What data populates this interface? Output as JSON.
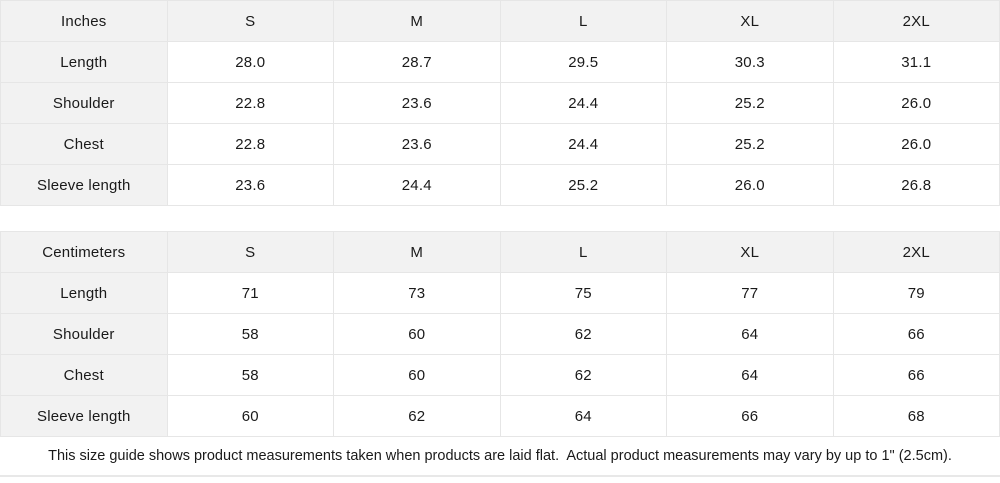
{
  "colors": {
    "header_bg": "#f2f2f2",
    "border": "#e6e6e6",
    "text": "#1a1a1a",
    "cell_bg": "#ffffff"
  },
  "inches_table": {
    "header": [
      "Inches",
      "S",
      "M",
      "L",
      "XL",
      "2XL"
    ],
    "rows": [
      {
        "label": "Length",
        "values": [
          "28.0",
          "28.7",
          "29.5",
          "30.3",
          "31.1"
        ]
      },
      {
        "label": "Shoulder",
        "values": [
          "22.8",
          "23.6",
          "24.4",
          "25.2",
          "26.0"
        ]
      },
      {
        "label": "Chest",
        "values": [
          "22.8",
          "23.6",
          "24.4",
          "25.2",
          "26.0"
        ]
      },
      {
        "label": "Sleeve length",
        "values": [
          "23.6",
          "24.4",
          "25.2",
          "26.0",
          "26.8"
        ]
      }
    ]
  },
  "centimeters_table": {
    "header": [
      "Centimeters",
      "S",
      "M",
      "L",
      "XL",
      "2XL"
    ],
    "rows": [
      {
        "label": "Length",
        "values": [
          "71",
          "73",
          "75",
          "77",
          "79"
        ]
      },
      {
        "label": "Shoulder",
        "values": [
          "58",
          "60",
          "62",
          "64",
          "66"
        ]
      },
      {
        "label": "Chest",
        "values": [
          "58",
          "60",
          "62",
          "64",
          "66"
        ]
      },
      {
        "label": "Sleeve length",
        "values": [
          "60",
          "62",
          "64",
          "66",
          "68"
        ]
      }
    ]
  },
  "footer": {
    "note": "This size guide shows product measurements taken when products are laid flat.  Actual product measurements may vary by up to 1\" (2.5cm)."
  }
}
